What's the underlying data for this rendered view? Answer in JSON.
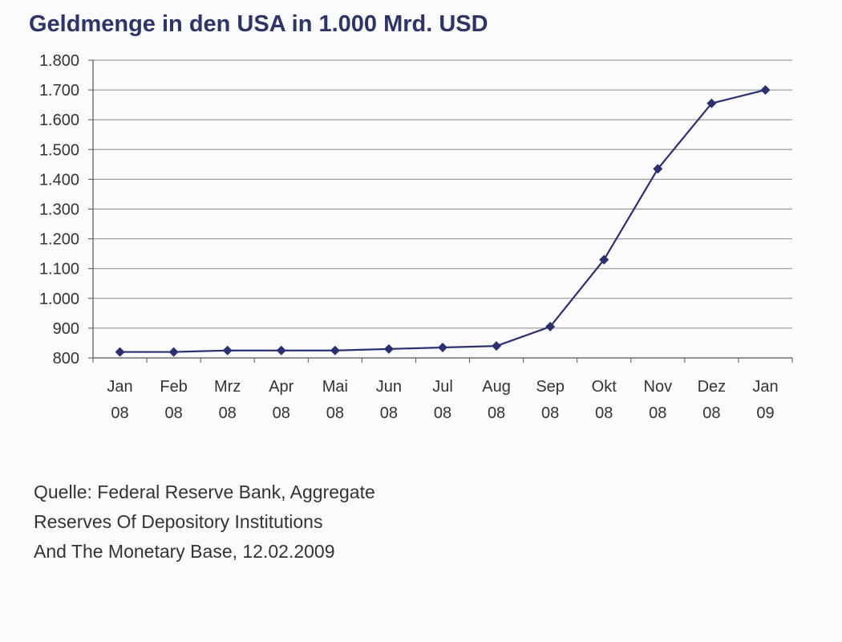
{
  "chart_data": {
    "type": "line",
    "title": "Geldmenge in den USA in 1.000 Mrd. USD",
    "xlabel": "",
    "ylabel": "",
    "categories": [
      [
        "Jan",
        "08"
      ],
      [
        "Feb",
        "08"
      ],
      [
        "Mrz",
        "08"
      ],
      [
        "Apr",
        "08"
      ],
      [
        "Mai",
        "08"
      ],
      [
        "Jun",
        "08"
      ],
      [
        "Jul",
        "08"
      ],
      [
        "Aug",
        "08"
      ],
      [
        "Sep",
        "08"
      ],
      [
        "Okt",
        "08"
      ],
      [
        "Nov",
        "08"
      ],
      [
        "Dez",
        "08"
      ],
      [
        "Jan",
        "09"
      ]
    ],
    "series": [
      {
        "values": [
          820,
          820,
          825,
          825,
          825,
          830,
          835,
          840,
          905,
          1130,
          1435,
          1655,
          1700
        ]
      }
    ],
    "ylim": [
      800,
      1800
    ],
    "yticks": [
      800,
      900,
      1000,
      1100,
      1200,
      1300,
      1400,
      1500,
      1600,
      1700,
      1800
    ],
    "ytick_labels": [
      "800",
      "900",
      "1.000",
      "1.100",
      "1.200",
      "1.300",
      "1.400",
      "1.500",
      "1.600",
      "1.700",
      "1.800"
    ],
    "grid": true,
    "legend": "none",
    "colors": {
      "line": "#2b3170",
      "marker": "#2b3170",
      "grid": "#8a8a8a",
      "axis": "#555555",
      "title": "#2d3466"
    }
  },
  "source": {
    "lines": [
      "Quelle: Federal Reserve Bank, Aggregate",
      "Reserves Of Depository Institutions",
      "And The Monetary Base, 12.02.2009"
    ]
  }
}
